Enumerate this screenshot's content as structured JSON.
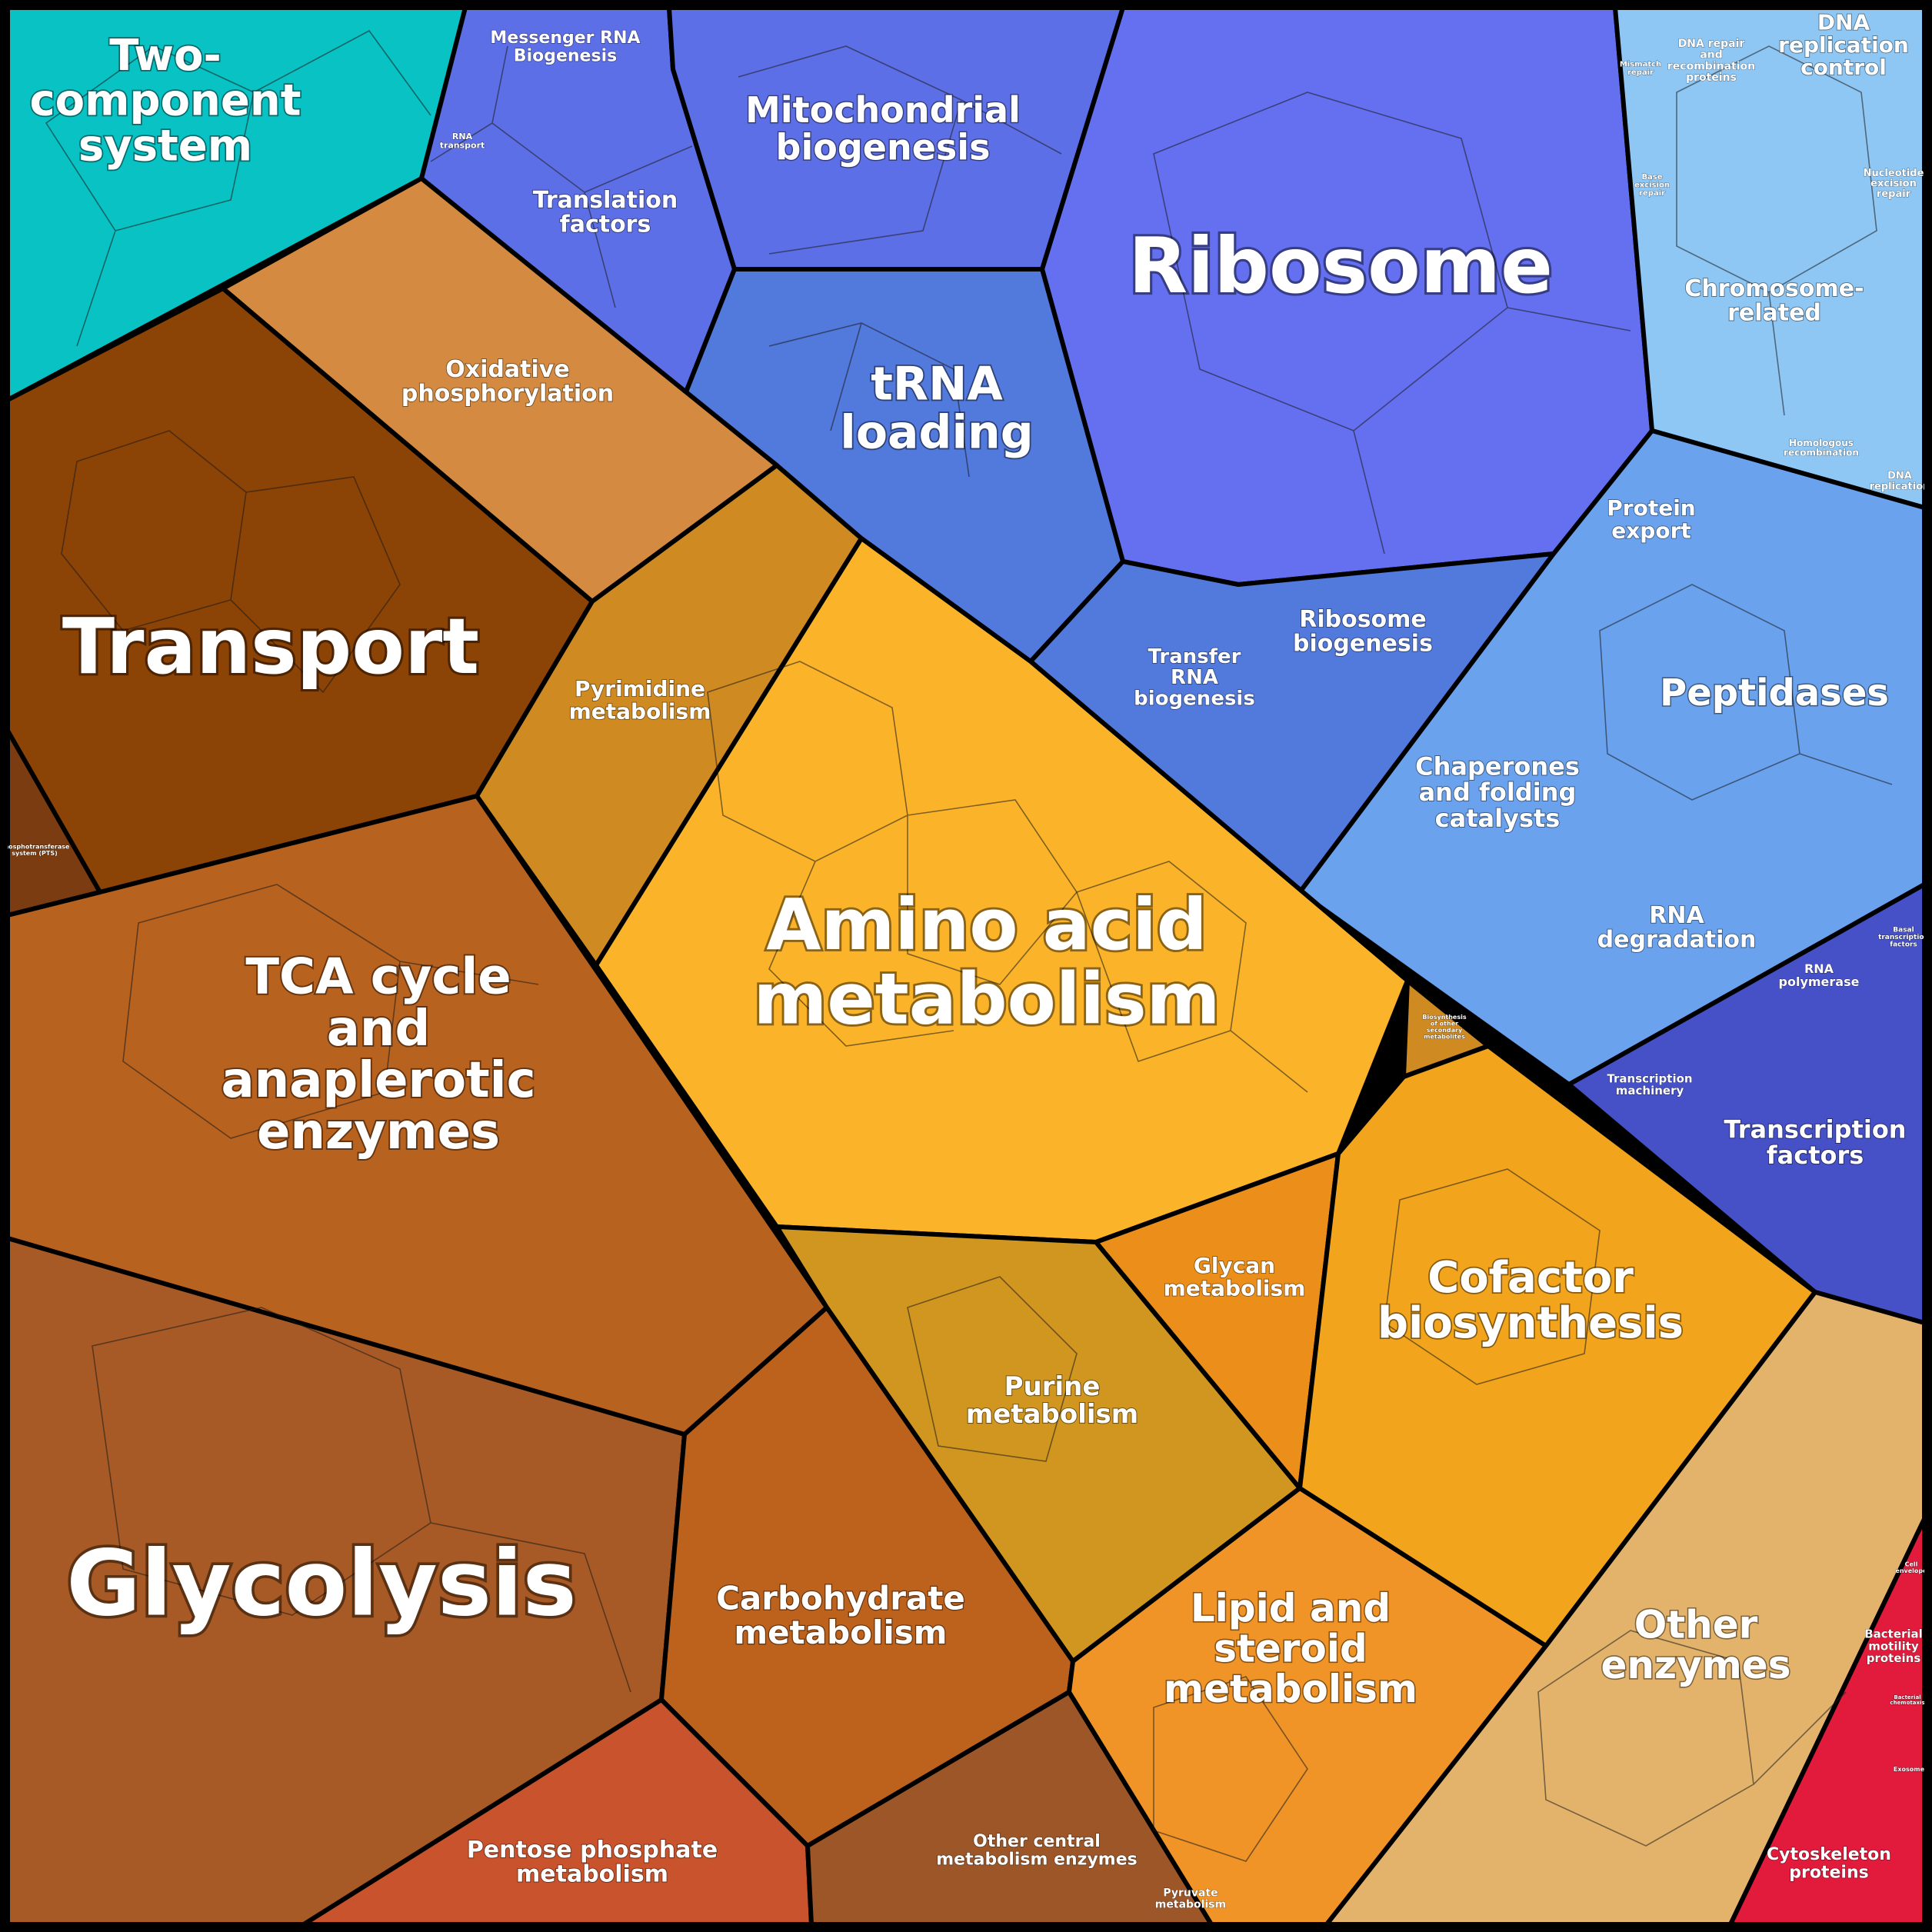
{
  "labels": {
    "two_component": "Two-\ncomponent\nsystem",
    "messenger_rna": "Messenger RNA\nBiogenesis",
    "rna_transport": "RNA\ntransport",
    "translation_factors": "Translation\nfactors",
    "mitochondrial": "Mitochondrial\nbiogenesis",
    "ribosome": "Ribosome",
    "mismatch_repair": "Mismatch\nrepair",
    "dna_repair": "DNA repair\nand\nrecombination\nproteins",
    "dna_replication_control": "DNA\nreplication\ncontrol",
    "base_excision": "Base\nexcision\nrepair",
    "nucleotide_excision": "Nucleotide\nexcision\nrepair",
    "chromosome": "Chromosome-\nrelated",
    "homologous": "Homologous\nrecombination",
    "dna_replication": "DNA\nreplication",
    "trna_loading": "tRNA\nloading",
    "oxidative": "Oxidative\nphosphorylation",
    "transport": "Transport",
    "pyrimidine": "Pyrimidine\nmetabolism",
    "transfer_rna": "Transfer\nRNA\nbiogenesis",
    "ribosome_biogenesis": "Ribosome\nbiogenesis",
    "protein_export": "Protein\nexport",
    "peptidases": "Peptidases",
    "chaperones": "Chaperones\nand folding\ncatalysts",
    "pts": "Phosphotransferase\nsystem (PTS)",
    "amino_acid": "Amino acid\nmetabolism",
    "rna_degradation": "RNA\ndegradation",
    "basal_transcription": "Basal\ntranscription\nfactors",
    "rna_polymerase": "RNA\npolymerase",
    "biosynthesis_secondary": "Biosynthesis\nof other\nsecondary\nmetabolites",
    "tca": "TCA cycle\nand\nanaplerotic\nenzymes",
    "transcription_machinery": "Transcription\nmachinery",
    "transcription_factors": "Transcription\nfactors",
    "glycan": "Glycan\nmetabolism",
    "cofactor": "Cofactor\nbiosynthesis",
    "purine": "Purine\nmetabolism",
    "glycolysis": "Glycolysis",
    "carbohydrate": "Carbohydrate\nmetabolism",
    "lipid": "Lipid and\nsteroid\nmetabolism",
    "other_enzymes": "Other\nenzymes",
    "cell_envelope": "Cell\nenvelope",
    "bacterial_motility": "Bacterial\nmotility\nproteins",
    "bacterial_chemotaxis": "Bacterial\nchemotaxis",
    "exosome": "Exosome",
    "pentose": "Pentose phosphate\nmetabolism",
    "other_central": "Other central\nmetabolism enzymes",
    "pyruvate": "Pyruvate\nmetabolism",
    "cytoskeleton": "Cytoskeleton\nproteins"
  },
  "colors": {
    "two_component": "#08c2c4",
    "blue_top": "#5d6fe6",
    "ribosome": "#6470f0",
    "trna": "#5279dc",
    "light_blue": "#8ec6f4",
    "peptidase_blue": "#6aa2ee",
    "indigo": "#4651c8",
    "transport": "#8c4306",
    "oxidative": "#d48a40",
    "pyrimidine": "#cf8a22",
    "amino_acid": "#fbb42a",
    "tca": "#b8621f",
    "glycolysis": "#a75a25",
    "carbohydrate": "#bd621d",
    "pentose": "#c9532c",
    "other_central": "#9c5628",
    "purine": "#d09620",
    "glycan": "#ec8f1a",
    "cofactor": "#f2a51c",
    "lipid": "#f09428",
    "other_enzymes": "#e3b36c",
    "red": "#e21b3c",
    "pts": "#7a3c10"
  }
}
